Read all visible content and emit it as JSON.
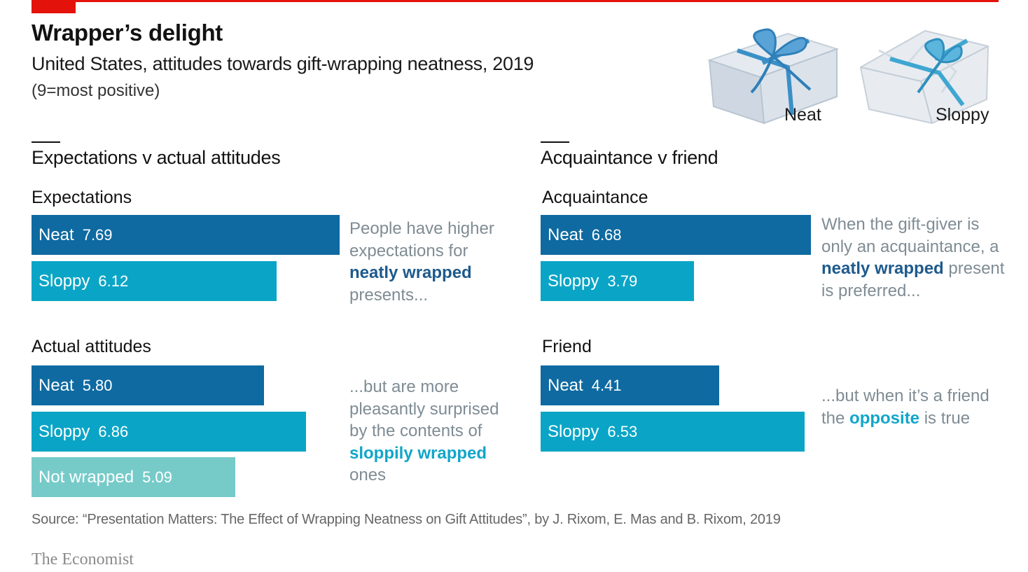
{
  "header": {
    "title": "Wrapper’s delight",
    "subtitle": "United States, attitudes towards gift-wrapping neatness, 2019",
    "unit_note": "(9=most positive)"
  },
  "illustration": {
    "neat_label": "Neat",
    "sloppy_label": "Sloppy"
  },
  "colors": {
    "neat": "#0e6aa1",
    "sloppy": "#0aa5c6",
    "not_wrapped": "#76cbc9",
    "accent_red": "#e3120b",
    "highlight_neat": "#1d5a8c",
    "highlight_sloppy": "#11a6c9"
  },
  "chart_data": [
    {
      "type": "bar",
      "panel_title": "Expectations v actual attitudes",
      "groups": [
        {
          "title": "Expectations",
          "bars": [
            {
              "label": "Neat",
              "value": 7.69,
              "value_text": "7.69",
              "color": "#0e6aa1"
            },
            {
              "label": "Sloppy",
              "value": 6.12,
              "value_text": "6.12",
              "color": "#0aa5c6"
            }
          ],
          "annotation": {
            "parts": [
              {
                "text": "People have higher expectations for "
              },
              {
                "text": "neatly wrapped",
                "color": "#1d5a8c"
              },
              {
                "text": " presents..."
              }
            ]
          }
        },
        {
          "title": "Actual attitudes",
          "bars": [
            {
              "label": "Neat",
              "value": 5.8,
              "value_text": "5.80",
              "color": "#0e6aa1"
            },
            {
              "label": "Sloppy",
              "value": 6.86,
              "value_text": "6.86",
              "color": "#0aa5c6"
            },
            {
              "label": "Not wrapped",
              "value": 5.09,
              "value_text": "5.09",
              "color": "#76cbc9"
            }
          ],
          "annotation": {
            "parts": [
              {
                "text": "...but are more pleasantly surprised by the contents of "
              },
              {
                "text": "sloppily wrapped",
                "color": "#11a6c9"
              },
              {
                "text": " ones"
              }
            ]
          }
        }
      ],
      "xlim": [
        0,
        9
      ]
    },
    {
      "type": "bar",
      "panel_title": "Acquaintance v friend",
      "groups": [
        {
          "title": "Acquaintance",
          "bars": [
            {
              "label": "Neat",
              "value": 6.68,
              "value_text": "6.68",
              "color": "#0e6aa1"
            },
            {
              "label": "Sloppy",
              "value": 3.79,
              "value_text": "3.79",
              "color": "#0aa5c6"
            }
          ],
          "annotation": {
            "parts": [
              {
                "text": "When the gift-giver is only an acquaintance, a "
              },
              {
                "text": "neatly wrapped",
                "color": "#1d5a8c"
              },
              {
                "text": " present is preferred..."
              }
            ]
          }
        },
        {
          "title": "Friend",
          "bars": [
            {
              "label": "Neat",
              "value": 4.41,
              "value_text": "4.41",
              "color": "#0e6aa1"
            },
            {
              "label": "Sloppy",
              "value": 6.53,
              "value_text": "6.53",
              "color": "#0aa5c6"
            }
          ],
          "annotation": {
            "parts": [
              {
                "text": "...but when it’s a friend the "
              },
              {
                "text": "opposite",
                "color": "#11a6c9"
              },
              {
                "text": " is true"
              }
            ]
          }
        }
      ],
      "xlim": [
        0,
        9
      ]
    }
  ],
  "footer": {
    "source": "Source: “Presentation Matters: The Effect of Wrapping Neatness on Gift Attitudes”, by J. Rixom, E. Mas and B. Rixom, 2019",
    "brand": "The Economist"
  }
}
